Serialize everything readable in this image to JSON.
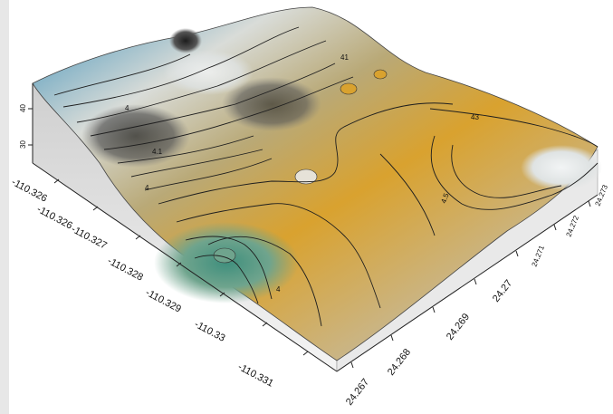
{
  "axis_lon": {
    "ticks": [
      "-110.326",
      "-110.326",
      "-110.327",
      "-110.328",
      "-110.329",
      "-110.33",
      "-110.331"
    ]
  },
  "axis_lat": {
    "ticks": [
      "24.267",
      "24.268",
      "24.269",
      "24.27",
      "24.271",
      "24.272",
      "24.273"
    ]
  },
  "axis_z": {
    "ticks": [
      "40",
      "30"
    ]
  },
  "contour_labels": [
    "41",
    "43",
    "4",
    "4.1",
    "4.5",
    "4",
    "4"
  ],
  "colors": {
    "low": "#4f9a83",
    "mid": "#d9a22f",
    "high": "#dfe6ea",
    "ridge": "#3b8fb8",
    "contour": "#1e1e1e"
  }
}
